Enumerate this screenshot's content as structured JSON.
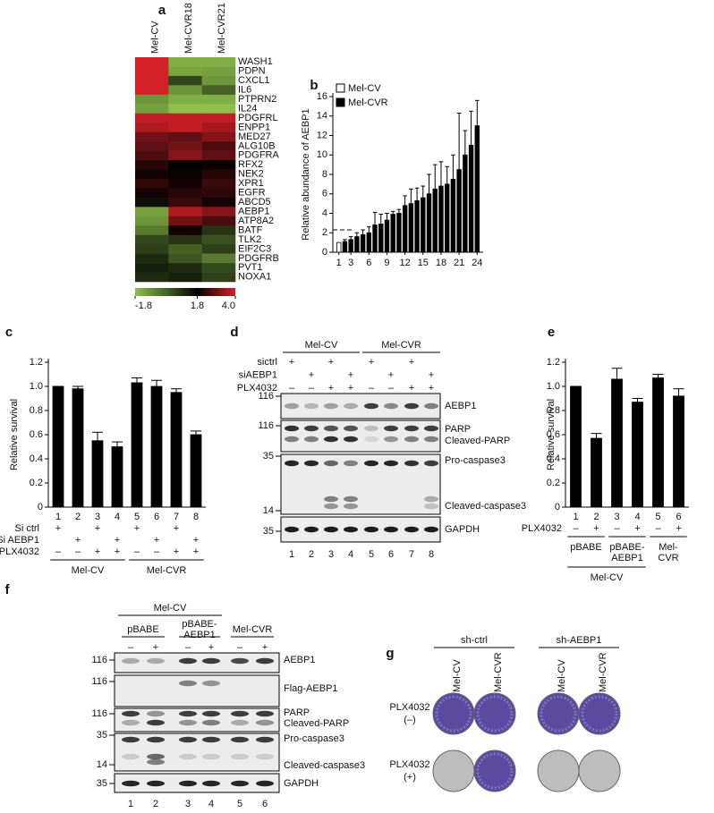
{
  "chart_data": [
    {
      "type": "heatmap",
      "panel_label": "a",
      "columns": [
        "Mel-CV",
        "Mel-CVR18",
        "Mel-CVR21"
      ],
      "rows": [
        "WASH1",
        "PDPN",
        "CXCL1",
        "IL6",
        "PTPRN2",
        "IL24",
        "PDGFRL",
        "ENPP1",
        "MED27",
        "ALG10B",
        "PDGFRA",
        "RFX2",
        "NEK2",
        "XPR1",
        "EGFR",
        "ABCD5",
        "AEBP1",
        "ATP8A2",
        "BATF",
        "TLK2",
        "EIF2C3",
        "PDGFRB",
        "PVT1",
        "NOXA1"
      ],
      "values": [
        [
          4.0,
          -1.5,
          -1.5
        ],
        [
          4.0,
          -1.3,
          -1.2
        ],
        [
          4.0,
          0.5,
          -1.0
        ],
        [
          4.0,
          -1.0,
          0
        ],
        [
          -1.0,
          -1.5,
          -1.5
        ],
        [
          -1.2,
          -1.8,
          -1.8
        ],
        [
          3.8,
          3.8,
          3.8
        ],
        [
          3.6,
          3.8,
          3.5
        ],
        [
          3.0,
          2.8,
          3.2
        ],
        [
          2.8,
          3.0,
          2.6
        ],
        [
          2.6,
          3.2,
          2.8
        ],
        [
          2.2,
          1.8,
          1.9
        ],
        [
          2.0,
          1.9,
          2.2
        ],
        [
          2.3,
          2.0,
          2.4
        ],
        [
          2.0,
          2.2,
          2.3
        ],
        [
          1.5,
          2.4,
          2.0
        ],
        [
          -1.2,
          3.6,
          3.2
        ],
        [
          -1.0,
          3.0,
          2.6
        ],
        [
          -0.5,
          2.0,
          0.8
        ],
        [
          0.5,
          0.8,
          0.3
        ],
        [
          0.6,
          0.0,
          0.6
        ],
        [
          1.0,
          0.2,
          -0.5
        ],
        [
          1.2,
          1.0,
          0.4
        ],
        [
          1.0,
          1.2,
          0.6
        ]
      ],
      "colorbar": {
        "lim": [
          -1.8,
          4.0
        ],
        "ticks": [
          -1.8,
          1.8,
          {
            "value": 4.0,
            "label": "4.0"
          }
        ],
        "colors": [
          "#8cc04b",
          "#000000",
          "#d42027"
        ]
      }
    },
    {
      "type": "bar",
      "panel_label": "b",
      "ylabel": "Relative abundance of AEBP1",
      "x": [
        1,
        2,
        3,
        4,
        5,
        6,
        7,
        8,
        9,
        10,
        11,
        12,
        13,
        14,
        15,
        16,
        17,
        18,
        19,
        20,
        21,
        22,
        23,
        24
      ],
      "series": [
        {
          "name": "Mel-CV",
          "color": "#ffffff",
          "values": [
            1.0,
            null,
            null,
            null,
            null,
            null,
            null,
            null,
            null,
            null,
            null,
            null,
            null,
            null,
            null,
            null,
            null,
            null,
            null,
            null,
            null,
            null,
            null,
            null
          ]
        },
        {
          "name": "Mel-CVR",
          "color": "#000000",
          "values": [
            null,
            1.1,
            1.3,
            1.6,
            1.8,
            2.0,
            2.8,
            2.9,
            3.3,
            3.9,
            4.0,
            4.8,
            5.0,
            5.3,
            5.6,
            6.0,
            6.5,
            6.8,
            7.0,
            7.5,
            8.5,
            10.0,
            11.0,
            13.0
          ],
          "errors": [
            null,
            0.2,
            0.3,
            0.4,
            0.5,
            0.6,
            1.3,
            1.0,
            0.7,
            0.3,
            0.4,
            1.0,
            1.5,
            1.3,
            1.2,
            2.0,
            2.5,
            2.5,
            1.8,
            2.5,
            5.8,
            2.5,
            3.5,
            2.6
          ]
        }
      ],
      "xlim": [
        0,
        25
      ],
      "xticks": [
        1,
        3,
        6,
        9,
        12,
        15,
        18,
        21,
        24
      ],
      "ylim": [
        0,
        16
      ],
      "yticks": [
        0,
        2,
        4,
        6,
        8,
        10,
        12,
        14,
        16
      ],
      "reference_line": 2.3,
      "legend": "top-left"
    },
    {
      "type": "bar",
      "panel_label": "c",
      "ylabel": "Relative survival",
      "categories": [
        "1",
        "2",
        "3",
        "4",
        "5",
        "6",
        "7",
        "8"
      ],
      "values": [
        1.0,
        0.98,
        0.55,
        0.5,
        1.03,
        1.0,
        0.95,
        0.6
      ],
      "errors": [
        0,
        0.02,
        0.07,
        0.04,
        0.04,
        0.05,
        0.03,
        0.03
      ],
      "color": "#000000",
      "ylim": [
        0,
        1.2
      ],
      "yticks": [
        0,
        0.2,
        0.4,
        0.6,
        0.8,
        {
          "value": 1.0,
          "label": "1.0"
        },
        1.2
      ],
      "conditions": [
        {
          "name": "Si ctrl",
          "marks": [
            "+",
            null,
            "+",
            null,
            "+",
            null,
            "+",
            null
          ]
        },
        {
          "name": "Si AEBP1",
          "marks": [
            null,
            "+",
            null,
            "+",
            null,
            "+",
            null,
            "+"
          ]
        },
        {
          "name": "PLX4032",
          "marks": [
            "–",
            "–",
            "+",
            "+",
            "–",
            "–",
            "+",
            "+"
          ]
        }
      ],
      "groups": [
        [
          "Mel-CV"
        ],
        [
          "Mel-CVR"
        ]
      ]
    },
    {
      "type": "bar",
      "panel_label": "e",
      "ylabel": "Relative survival",
      "categories": [
        "1",
        "2",
        "3",
        "4",
        "5",
        "6"
      ],
      "values": [
        1.0,
        0.57,
        1.06,
        0.87,
        1.07,
        0.92
      ],
      "errors": [
        0,
        0.04,
        0.09,
        0.03,
        0.03,
        0.06
      ],
      "color": "#000000",
      "ylim": [
        0,
        1.2
      ],
      "yticks": [
        0,
        0.2,
        0.4,
        0.6,
        0.8,
        {
          "value": 1.0,
          "label": "1.0"
        },
        1.2
      ],
      "conditions": [
        {
          "name": "PLX4032",
          "marks": [
            "–",
            "+",
            "–",
            "+",
            "–",
            "+"
          ]
        }
      ],
      "groups": [
        [
          "pBABE"
        ],
        [
          "pBABE-",
          "AEBP1"
        ],
        [
          "Mel-",
          "CVR"
        ]
      ],
      "supergroup": "Mel-CV"
    }
  ],
  "blot_d": {
    "panel_label": "d",
    "groups": [
      "Mel-CV",
      "Mel-CVR"
    ],
    "conditions": [
      {
        "name": "sictrl",
        "marks": [
          "+",
          null,
          "+",
          null,
          "+",
          null,
          "+",
          null
        ]
      },
      {
        "name": "siAEBP1",
        "marks": [
          null,
          "+",
          null,
          "+",
          null,
          "+",
          null,
          "+"
        ]
      },
      {
        "name": "PLX4032",
        "marks": [
          "–",
          "–",
          "+",
          "+",
          "–",
          "–",
          "+",
          "+"
        ]
      }
    ],
    "strips": [
      {
        "markers": [
          "116"
        ],
        "proteins": [
          "AEBP1"
        ]
      },
      {
        "markers": [
          "116"
        ],
        "proteins": [
          "PARP",
          "Cleaved-PARP"
        ]
      },
      {
        "markers": [
          "35",
          "14"
        ],
        "proteins": [
          "Pro-caspase3",
          "Cleaved-caspase3"
        ]
      },
      {
        "markers": [
          "35"
        ],
        "proteins": [
          "GAPDH"
        ]
      }
    ],
    "lanes": [
      "1",
      "2",
      "3",
      "4",
      "5",
      "6",
      "7",
      "8"
    ]
  },
  "blot_f": {
    "panel_label": "f",
    "header": "Mel-CV",
    "groups": [
      [
        "pBABE"
      ],
      [
        "pBABE-",
        "AEBP1"
      ],
      [
        "Mel-CVR"
      ]
    ],
    "conditions": [
      {
        "marks": [
          "–",
          "+",
          "–",
          "+",
          "–",
          "+"
        ]
      }
    ],
    "strips": [
      {
        "markers": [
          "116"
        ],
        "proteins": [
          "AEBP1"
        ]
      },
      {
        "markers": [
          "116"
        ],
        "proteins": [
          "Flag-AEBP1"
        ]
      },
      {
        "markers": [
          "116"
        ],
        "proteins": [
          "PARP",
          "Cleaved-PARP"
        ]
      },
      {
        "markers": [
          "35",
          "14"
        ],
        "proteins": [
          "Pro-caspase3",
          "Cleaved-caspase3"
        ]
      },
      {
        "markers": [
          "35"
        ],
        "proteins": [
          "GAPDH"
        ]
      }
    ],
    "lanes": [
      "1",
      "2",
      "3",
      "4",
      "5",
      "6"
    ]
  },
  "panel_g": {
    "panel_label": "g",
    "groups": [
      "sh-ctrl",
      "sh-AEBP1"
    ],
    "columns": [
      "Mel-CV",
      "Mel-CVR",
      "Mel-CV",
      "Mel-CVR"
    ],
    "rows": [
      [
        "PLX4032",
        "(–)"
      ],
      [
        "PLX4032",
        "(+)"
      ]
    ]
  }
}
